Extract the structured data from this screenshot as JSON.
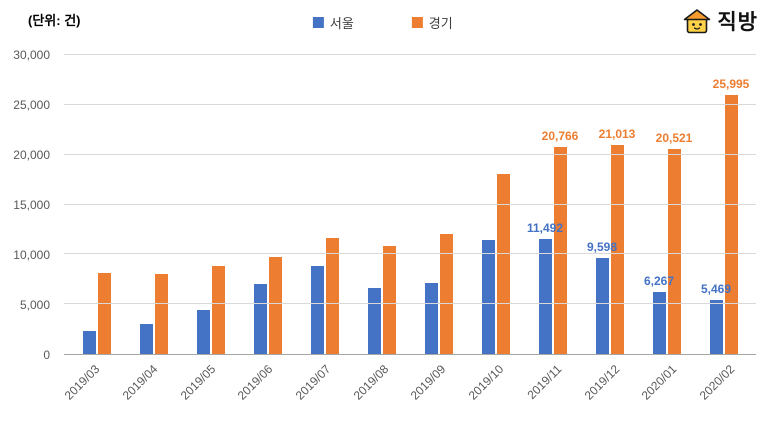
{
  "header": {
    "unit_label": "(단위: 건)"
  },
  "logo": {
    "text": "직방"
  },
  "chart_data": {
    "type": "bar",
    "title": "",
    "unit_label": "(단위: 건)",
    "categories": [
      "2019/03",
      "2019/04",
      "2019/05",
      "2019/06",
      "2019/07",
      "2019/08",
      "2019/09",
      "2019/10",
      "2019/11",
      "2019/12",
      "2020/01",
      "2020/02"
    ],
    "series": [
      {
        "id": "seoul",
        "name": "서울",
        "color": "#4472C4",
        "values": [
          2300,
          3000,
          4400,
          7000,
          8800,
          6600,
          7100,
          11400,
          11492,
          9598,
          6267,
          5469
        ],
        "data_labels": [
          null,
          null,
          null,
          null,
          null,
          null,
          null,
          null,
          "11,492",
          "9,598",
          "6,267",
          "5,469"
        ]
      },
      {
        "id": "gyeonggi",
        "name": "경기",
        "color": "#ED7D31",
        "values": [
          8100,
          8000,
          8800,
          9700,
          11600,
          10800,
          12000,
          18100,
          20766,
          21013,
          20521,
          25995
        ],
        "data_labels": [
          null,
          null,
          null,
          null,
          null,
          null,
          null,
          null,
          "20,766",
          "21,013",
          "20,521",
          "25,995"
        ]
      }
    ],
    "ylim": [
      0,
      30000
    ],
    "ytick_interval": 5000,
    "ytick_labels": [
      "0",
      "5,000",
      "10,000",
      "15,000",
      "20,000",
      "25,000",
      "30,000"
    ],
    "grid": true,
    "legend_position": "top"
  },
  "colors": {
    "seoul": "#4472C4",
    "gyeonggi": "#ED7D31",
    "gridline": "#D9D9D9",
    "axis": "#A6A6A6",
    "tick_text": "#595959",
    "logo_roof": "#F79B2E",
    "logo_body": "#FFD24A"
  }
}
